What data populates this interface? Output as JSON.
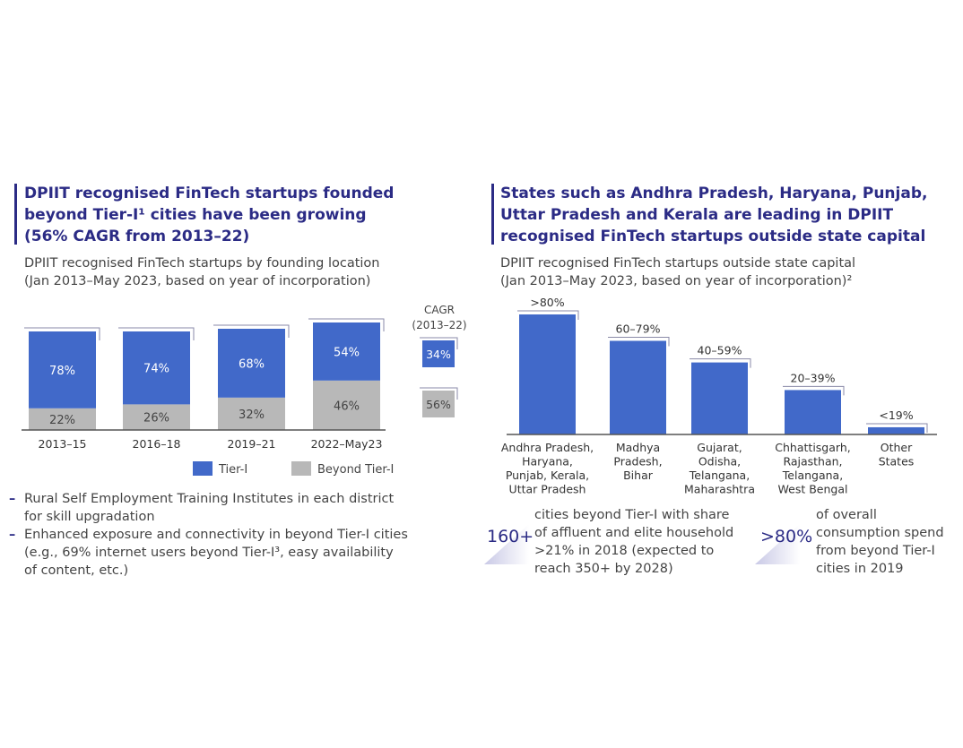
{
  "left": {
    "title_lines": [
      "DPIIT recognised FinTech startups founded",
      "beyond Tier-I¹ cities have been growing",
      "(56% CAGR from 2013–22)"
    ],
    "subtitle_lines": [
      "DPIIT recognised FinTech startups by founding location",
      "(Jan 2013–May 2023, based on year of incorporation)"
    ],
    "cagr_label": [
      "CAGR",
      "(2013–22)"
    ],
    "cagr_values": [
      "34%",
      "56%"
    ],
    "legend": [
      "Tier-I",
      "Beyond Tier-I"
    ],
    "bullets": [
      [
        "Rural Self Employment Training Institutes in each district",
        "for skill upgradation"
      ],
      [
        "Enhanced exposure and connectivity in beyond Tier-I cities",
        "(e.g., 69% internet users beyond Tier-I³, easy availability",
        "of content, etc.)"
      ]
    ]
  },
  "right": {
    "title_lines": [
      "States such as Andhra Pradesh, Haryana, Punjab,",
      "Uttar Pradesh and Kerala are leading in DPIIT",
      "recognised FinTech startups outside state capital"
    ],
    "subtitle_lines": [
      "DPIIT recognised FinTech startups outside state capital",
      "(Jan 2013–May 2023, based on year of incorporation)²"
    ],
    "stats": [
      {
        "value": "160+",
        "text": [
          "cities beyond Tier-I with share",
          "of affluent and elite household",
          ">21% in 2018 (expected to",
          "reach 350+ by 2028)"
        ]
      },
      {
        "value": ">80%",
        "text": [
          "of overall",
          "consumption spend",
          "from beyond Tier-I",
          "cities in 2019"
        ]
      }
    ]
  },
  "colors": {
    "tier1": "#4169c9",
    "beyond": "#b8b8b8",
    "navy": "#2b2b85"
  },
  "chart_data": [
    {
      "type": "bar",
      "stacked": true,
      "categories": [
        "2013–15",
        "2016–18",
        "2019–21",
        "2022–May23"
      ],
      "series": [
        {
          "name": "Tier-I",
          "values": [
            78,
            74,
            68,
            54
          ],
          "labels": [
            "78%",
            "74%",
            "68%",
            "54%"
          ]
        },
        {
          "name": "Beyond Tier-I",
          "values": [
            22,
            26,
            32,
            46
          ],
          "labels": [
            "22%",
            "26%",
            "32%",
            "46%"
          ]
        }
      ],
      "ylim": [
        0,
        100
      ],
      "legend_position": "bottom"
    },
    {
      "type": "bar",
      "categories": [
        [
          "Andhra Pradesh,",
          "Haryana,",
          "Punjab, Kerala,",
          "Uttar Pradesh"
        ],
        [
          "Madhya",
          "Pradesh,",
          "Bihar"
        ],
        [
          "Gujarat,",
          "Odisha,",
          "Telangana,",
          "Maharashtra"
        ],
        [
          "Chhattisgarh,",
          "Rajasthan,",
          "Telangana,",
          "West Bengal"
        ],
        [
          "Other",
          "States"
        ]
      ],
      "values": [
        100,
        78,
        60,
        37,
        6
      ],
      "labels": [
        ">80%",
        "60–79%",
        "40–59%",
        "20–39%",
        "<19%"
      ]
    }
  ]
}
